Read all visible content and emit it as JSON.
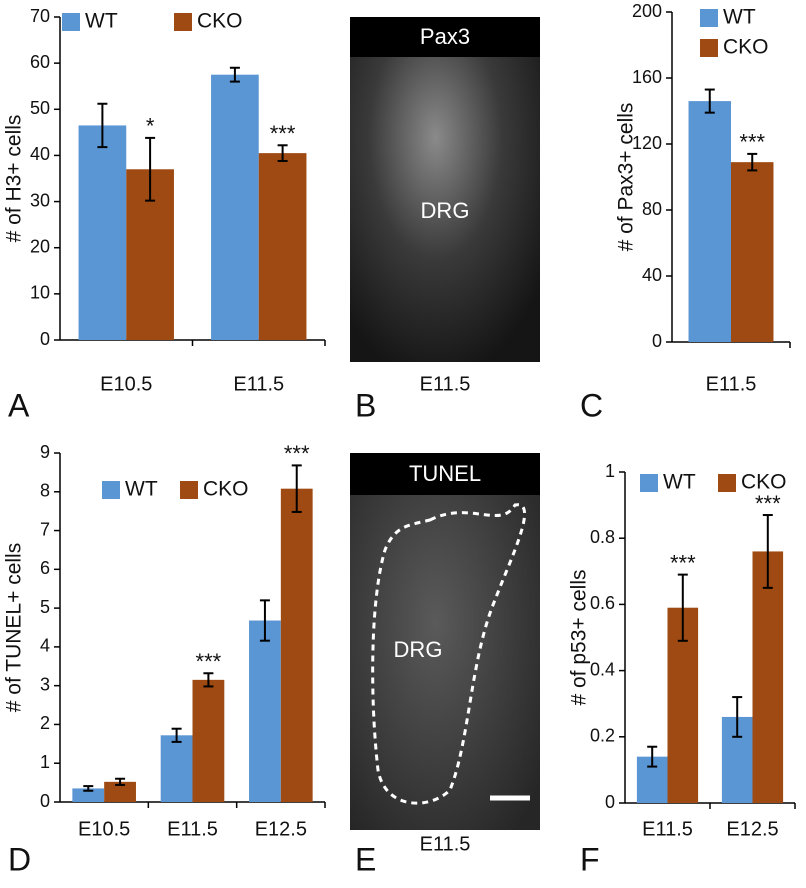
{
  "chart_data": [
    {
      "type": "bar",
      "panel_label": "A",
      "y_label": "# of H3+ cells",
      "categories": [
        "E10.5",
        "E11.5"
      ],
      "series": [
        {
          "name": "WT",
          "color": "#5b96d4",
          "values": [
            46.5,
            57.5
          ],
          "errors": [
            4.7,
            1.5
          ],
          "annotations": [
            null,
            null
          ]
        },
        {
          "name": "CKO",
          "color": "#9e4a12",
          "values": [
            37,
            40.5
          ],
          "errors": [
            6.8,
            1.7
          ],
          "annotations": [
            "*",
            "***"
          ]
        }
      ],
      "ylim": [
        0,
        70
      ],
      "yticks": [
        0,
        10,
        20,
        30,
        40,
        50,
        60,
        70
      ]
    },
    {
      "type": "bar",
      "panel_label": "C",
      "y_label": "# of Pax3+ cells",
      "categories": [
        "E11.5"
      ],
      "series": [
        {
          "name": "WT",
          "color": "#5b96d4",
          "values": [
            146
          ],
          "errors": [
            7
          ],
          "annotations": [
            null
          ]
        },
        {
          "name": "CKO",
          "color": "#9e4a12",
          "values": [
            109
          ],
          "errors": [
            5
          ],
          "annotations": [
            "***"
          ]
        }
      ],
      "ylim": [
        0,
        200
      ],
      "yticks": [
        0,
        40,
        80,
        120,
        160,
        200
      ]
    },
    {
      "type": "bar",
      "panel_label": "D",
      "y_label": "# of TUNEL+ cells",
      "categories": [
        "E10.5",
        "E11.5",
        "E12.5"
      ],
      "series": [
        {
          "name": "WT",
          "color": "#5b96d4",
          "values": [
            0.35,
            1.72,
            4.68
          ],
          "errors": [
            0.06,
            0.17,
            0.52
          ],
          "annotations": [
            null,
            null,
            null
          ]
        },
        {
          "name": "CKO",
          "color": "#9e4a12",
          "values": [
            0.52,
            3.15,
            8.08
          ],
          "errors": [
            0.08,
            0.17,
            0.6
          ],
          "annotations": [
            null,
            "***",
            "***"
          ]
        }
      ],
      "ylim": [
        0,
        9
      ],
      "yticks": [
        0,
        1,
        2,
        3,
        4,
        5,
        6,
        7,
        8,
        9
      ]
    },
    {
      "type": "bar",
      "panel_label": "F",
      "y_label": "# of p53+ cells",
      "categories": [
        "E11.5",
        "E12.5"
      ],
      "series": [
        {
          "name": "WT",
          "color": "#5b96d4",
          "values": [
            0.14,
            0.26
          ],
          "errors": [
            0.03,
            0.06
          ],
          "annotations": [
            null,
            null
          ]
        },
        {
          "name": "CKO",
          "color": "#9e4a12",
          "values": [
            0.59,
            0.76
          ],
          "errors": [
            0.1,
            0.11
          ],
          "annotations": [
            "***",
            "***"
          ]
        }
      ],
      "ylim": [
        0,
        1
      ],
      "yticks": [
        0,
        0.2,
        0.4,
        0.6,
        0.8,
        1
      ]
    }
  ],
  "images": [
    {
      "panel_label": "B",
      "title": "Pax3",
      "label": "DRG",
      "caption": "E11.5"
    },
    {
      "panel_label": "E",
      "title": "TUNEL",
      "label": "DRG",
      "caption": "E11.5"
    }
  ]
}
